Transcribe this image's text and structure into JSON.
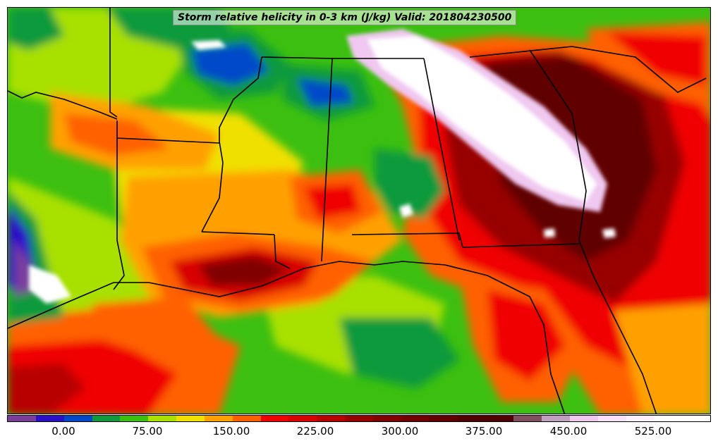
{
  "title": "Storm relative helicity in 0-3 km (J/kg) Valid: 201804230500",
  "colorbar": {
    "colors": [
      "#7b3f9b",
      "#2a10c8",
      "#0048c8",
      "#109a3c",
      "#3cbf10",
      "#a8e000",
      "#f0e000",
      "#ffa000",
      "#ff6000",
      "#f00000",
      "#d80000",
      "#b80000",
      "#980000",
      "#800000",
      "#700000",
      "#600000",
      "#500000",
      "#500000",
      "#805060",
      "#c0a0c0",
      "#f0c8f0",
      "#f8e0f8",
      "#fff0ff",
      "#ffffff",
      "#ffffff"
    ],
    "labels": [
      "0.00",
      "75.00",
      "150.00",
      "225.00",
      "300.00",
      "375.00",
      "450.00",
      "525.00"
    ]
  },
  "legend_colors": {
    "low": "#2a10c8",
    "mid": "#3cbf10",
    "high": "#f00000",
    "extreme": "#600000",
    "max": "#ffffff"
  }
}
